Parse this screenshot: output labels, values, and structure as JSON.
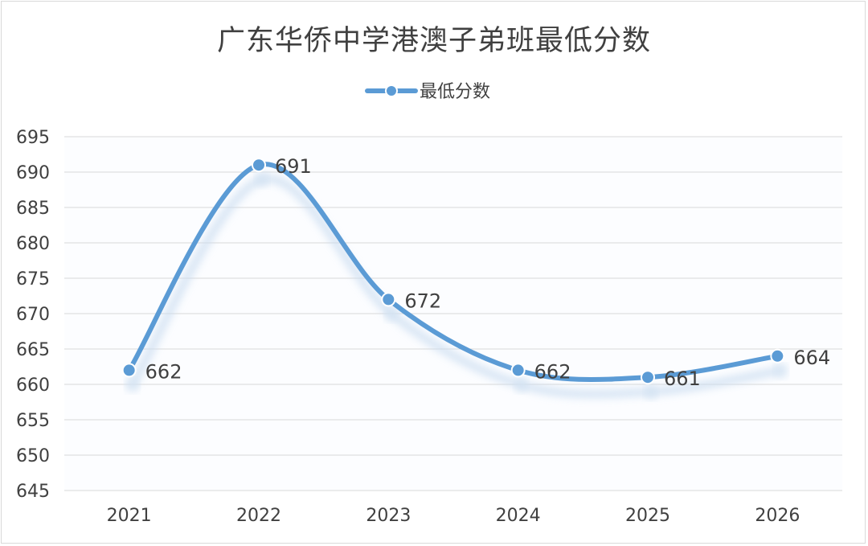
{
  "chart_data": {
    "type": "line",
    "title": "广东华侨中学港澳子弟班最低分数",
    "categories": [
      "2021",
      "2022",
      "2023",
      "2024",
      "2025",
      "2026"
    ],
    "series": [
      {
        "name": "最低分数",
        "values": [
          662,
          691,
          672,
          662,
          661,
          664
        ]
      }
    ],
    "ylim": [
      645,
      695
    ],
    "yticks": [
      645,
      650,
      655,
      660,
      665,
      670,
      675,
      680,
      685,
      690,
      695
    ],
    "grid": true,
    "smooth": true,
    "legend_position": "top",
    "data_labels": true,
    "colors": {
      "series": "#5b9bd5",
      "grid": "#d9d9d9",
      "text": "#404040"
    }
  }
}
